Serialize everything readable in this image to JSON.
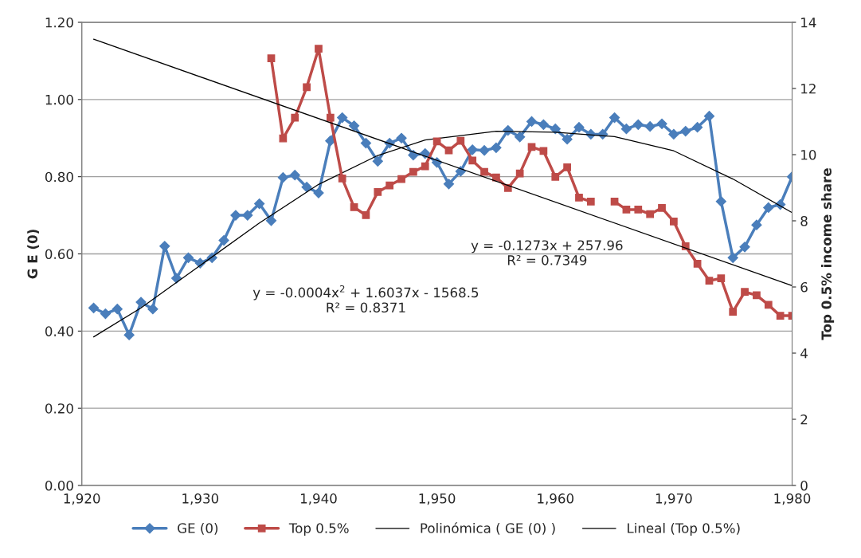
{
  "chart_data": {
    "type": "line",
    "xlabel": null,
    "ylabel": "G E (0)",
    "y2label": "Top 0.5% income share",
    "xlim": [
      1920,
      1980
    ],
    "xticks": [
      {
        "value": 1920,
        "label": "1,920"
      },
      {
        "value": 1930,
        "label": "1,930"
      },
      {
        "value": 1940,
        "label": "1,940"
      },
      {
        "value": 1950,
        "label": "1,950"
      },
      {
        "value": 1960,
        "label": "1,960"
      },
      {
        "value": 1970,
        "label": "1,970"
      },
      {
        "value": 1980,
        "label": "1,980"
      }
    ],
    "ylim": [
      0,
      1.2
    ],
    "yticks": [
      {
        "value": 0,
        "label": "0.00"
      },
      {
        "value": 0.2,
        "label": "0.20"
      },
      {
        "value": 0.4,
        "label": "0.40"
      },
      {
        "value": 0.6,
        "label": "0.60"
      },
      {
        "value": 0.8,
        "label": "0.80"
      },
      {
        "value": 1.0,
        "label": "1.00"
      },
      {
        "value": 1.2,
        "label": "1.20"
      }
    ],
    "y2lim": [
      0,
      14
    ],
    "y2ticks": [
      0,
      2,
      4,
      6,
      8,
      10,
      12,
      14
    ],
    "grid": "y",
    "legend": "bottom",
    "series": [
      {
        "name": "GE (0)",
        "color": "#4a7ebb",
        "marker": "diamond",
        "x": [
          1921,
          1922,
          1923,
          1924,
          1925,
          1926,
          1927,
          1928,
          1929,
          1930,
          1931,
          1932,
          1933,
          1934,
          1935,
          1936,
          1937,
          1938,
          1939,
          1940,
          1941,
          1942,
          1943,
          1944,
          1945,
          1946,
          1947,
          1948,
          1949,
          1950,
          1951,
          1952,
          1953,
          1954,
          1955,
          1956,
          1957,
          1958,
          1959,
          1960,
          1961,
          1962,
          1963,
          1964,
          1965,
          1966,
          1967,
          1968,
          1969,
          1970,
          1971,
          1972,
          1973,
          1974,
          1975,
          1976,
          1977,
          1978,
          1979,
          1980
        ],
        "values": [
          0.46,
          0.445,
          0.457,
          0.39,
          0.475,
          0.457,
          0.62,
          0.537,
          0.59,
          0.576,
          0.59,
          0.635,
          0.7,
          0.7,
          0.73,
          0.686,
          0.798,
          0.804,
          0.773,
          0.758,
          0.893,
          0.953,
          0.932,
          0.887,
          0.84,
          0.887,
          0.9,
          0.856,
          0.86,
          0.837,
          0.781,
          0.814,
          0.87,
          0.868,
          0.875,
          0.92,
          0.903,
          0.943,
          0.935,
          0.924,
          0.897,
          0.928,
          0.91,
          0.91,
          0.953,
          0.924,
          0.935,
          0.93,
          0.937,
          0.91,
          0.918,
          0.928,
          0.957,
          0.736,
          0.59,
          0.618,
          0.675,
          0.72,
          0.728,
          0.8
        ]
      },
      {
        "name": "Top 0.5%",
        "color": "#be4b48",
        "marker": "square",
        "axis": "y2",
        "x": [
          1936,
          1937,
          1938,
          1939,
          1940,
          1941,
          1942,
          1943,
          1944,
          1945,
          1946,
          1947,
          1948,
          1949,
          1950,
          1951,
          1952,
          1953,
          1954,
          1955,
          1956,
          1957,
          1958,
          1959,
          1960,
          1961,
          1962,
          1963,
          1964,
          1965,
          1966,
          1967,
          1968,
          1969,
          1970,
          1971,
          1972,
          1973,
          1974,
          1975,
          1976,
          1977,
          1978,
          1979,
          1980
        ],
        "values": [
          12.91,
          10.49,
          11.12,
          12.04,
          13.2,
          11.12,
          9.28,
          8.41,
          8.17,
          8.87,
          9.07,
          9.26,
          9.48,
          9.65,
          10.4,
          10.13,
          10.42,
          9.82,
          9.48,
          9.31,
          8.99,
          9.43,
          10.23,
          10.11,
          9.33,
          9.62,
          8.7,
          8.58,
          null,
          8.58,
          8.34,
          8.34,
          8.2,
          8.39,
          7.98,
          7.23,
          6.7,
          6.19,
          6.26,
          5.25,
          5.85,
          5.75,
          5.46,
          5.13,
          5.13
        ]
      },
      {
        "name": "Polinómica ( GE (0) )",
        "color": "#000000",
        "marker": "none",
        "x": [
          1921,
          1925,
          1930,
          1935,
          1940,
          1945,
          1949,
          1955,
          1960,
          1965,
          1970,
          1975,
          1980
        ],
        "values": [
          0.385,
          0.46,
          0.57,
          0.68,
          0.78,
          0.855,
          0.895,
          0.918,
          0.915,
          0.904,
          0.867,
          0.794,
          0.707
        ]
      },
      {
        "name": "Lineal (Top 0.5%)",
        "color": "#000000",
        "marker": "none",
        "axis": "y2",
        "x": [
          1921,
          1980
        ],
        "values": [
          13.49,
          6.04
        ]
      }
    ],
    "annotations": [
      "y = -0.0004x$^{2}$ + 1.6037x - 1568.5\nR² = 0.8371",
      "y = -0.1273x + 257.96\nR² = 0.7349"
    ]
  }
}
